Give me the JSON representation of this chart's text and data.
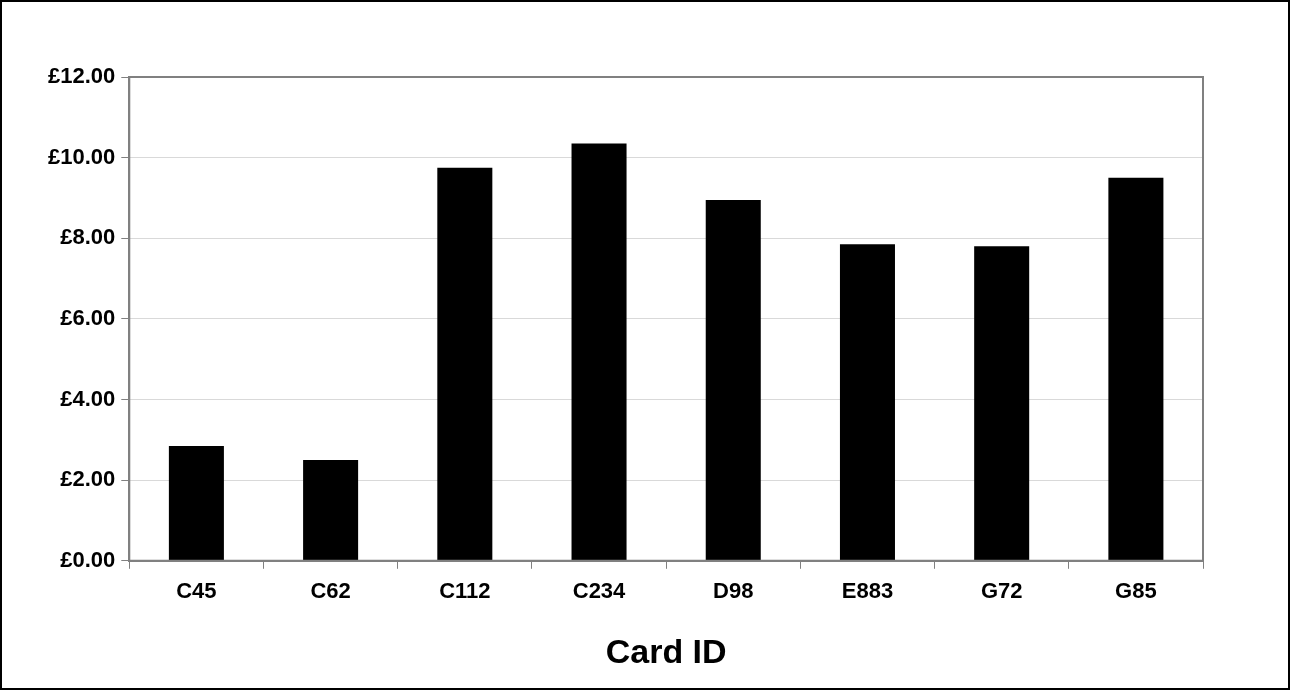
{
  "chart_data": {
    "type": "bar",
    "xlabel": "Card ID",
    "categories": [
      "C45",
      "C62",
      "C112",
      "C234",
      "D98",
      "E883",
      "G72",
      "G85"
    ],
    "values": [
      2.85,
      2.5,
      9.75,
      10.35,
      8.95,
      7.85,
      7.8,
      9.5
    ],
    "color": "#000000",
    "ylim": [
      0,
      12
    ],
    "yticks": [
      {
        "value": 0,
        "label": "£0.00"
      },
      {
        "value": 2,
        "label": "£2.00"
      },
      {
        "value": 4,
        "label": "£4.00"
      },
      {
        "value": 6,
        "label": "£6.00"
      },
      {
        "value": 8,
        "label": "£8.00"
      },
      {
        "value": 10,
        "label": "£10.00"
      },
      {
        "value": 12,
        "label": "£12.00"
      }
    ],
    "grid": "y",
    "legend": false
  }
}
